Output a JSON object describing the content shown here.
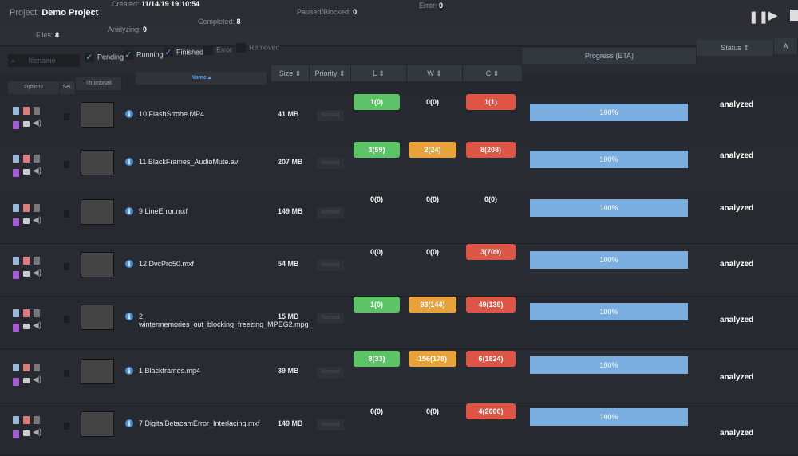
{
  "header": {
    "project_label": "Project:",
    "project_name": "Demo Project",
    "created_label": "Created:",
    "created": "11/14/19 19:10:54",
    "error_label": "Error:",
    "error": "0"
  },
  "stats": {
    "files_label": "Files:",
    "files": "8",
    "analyzing_label": "Analyzing:",
    "analyzing": "0",
    "completed_label": "Completed:",
    "completed": "8",
    "paused_label": "Paused/Blocked:",
    "paused": "0"
  },
  "controls": {
    "pause": "pause-icon",
    "play": "play-icon",
    "stop": "stop-icon"
  },
  "filters": {
    "search_placeholder": "filename",
    "items": [
      {
        "label": "Pending",
        "checked": true
      },
      {
        "label": "Running",
        "checked": true
      },
      {
        "label": "Finished",
        "checked": true
      },
      {
        "label": "Error",
        "checked": false
      },
      {
        "label": "Removed",
        "checked": false
      }
    ]
  },
  "columns": {
    "options": "Options",
    "sel": "Sel.",
    "thumbnail": "Thumbnail",
    "name": "Name",
    "size": "Size",
    "priority": "Priority",
    "l": "L",
    "w": "W",
    "c": "C",
    "progress": "Progress (ETA)",
    "status": "Status",
    "a": "A"
  },
  "colors": {
    "green": "#5cc466",
    "orange": "#e8a23c",
    "red": "#dc5545",
    "progress": "#7aaee0",
    "accent": "#4d8fd8"
  },
  "rows": [
    {
      "name": "10 FlashStrobe.MP4",
      "size": "41 MB",
      "priority": "Normal",
      "l": "1(0)",
      "l_color": "green",
      "w": "0(0)",
      "w_color": "",
      "c": "1(1)",
      "c_color": "red",
      "progress": "100%",
      "status": "analyzed"
    },
    {
      "name": "11 BlackFrames_AudioMute.avi",
      "size": "207 MB",
      "priority": "Normal",
      "l": "3(59)",
      "l_color": "green",
      "w": "2(24)",
      "w_color": "orange",
      "c": "8(208)",
      "c_color": "red",
      "progress": "100%",
      "status": "analyzed"
    },
    {
      "name": "9 LineError.mxf",
      "size": "149 MB",
      "priority": "Normal",
      "l": "0(0)",
      "l_color": "",
      "w": "0(0)",
      "w_color": "",
      "c": "0(0)",
      "c_color": "",
      "progress": "100%",
      "status": "analyzed"
    },
    {
      "name": "12 DvcPro50.mxf",
      "size": "54 MB",
      "priority": "Normal",
      "l": "0(0)",
      "l_color": "",
      "w": "0(0)",
      "w_color": "",
      "c": "3(709)",
      "c_color": "red",
      "progress": "100%",
      "status": "analyzed"
    },
    {
      "name": "2 wintermemories_out_blocking_freezing_MPEG2.mpg",
      "size": "15 MB",
      "priority": "Normal",
      "l": "1(0)",
      "l_color": "green",
      "w": "93(144)",
      "w_color": "orange",
      "c": "49(139)",
      "c_color": "red",
      "progress": "100%",
      "status": "analyzed"
    },
    {
      "name": "1 Blackframes.mp4",
      "size": "39 MB",
      "priority": "Normal",
      "l": "8(33)",
      "l_color": "green",
      "w": "156(178)",
      "w_color": "orange",
      "c": "6(1824)",
      "c_color": "red",
      "progress": "100%",
      "status": "analyzed"
    },
    {
      "name": "7 DigitalBetacamError_Interlacing.mxf",
      "size": "149 MB",
      "priority": "Normal",
      "l": "0(0)",
      "l_color": "",
      "w": "0(0)",
      "w_color": "",
      "c": "4(2000)",
      "c_color": "red",
      "progress": "100%",
      "status": "analyzed"
    }
  ]
}
